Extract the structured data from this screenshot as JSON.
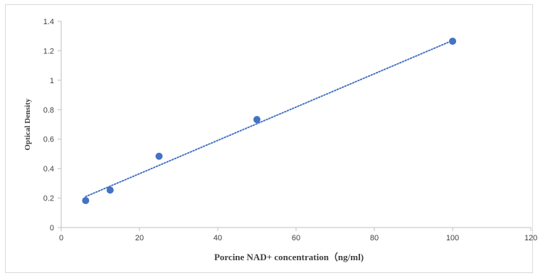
{
  "chart_data": {
    "type": "scatter",
    "xlabel": "Porcine NAD+ concentration（ng/ml)",
    "ylabel": "Optical Density",
    "xlim": [
      0,
      120
    ],
    "ylim": [
      0,
      1.4
    ],
    "x_ticks": [
      0,
      20,
      40,
      60,
      80,
      100,
      120
    ],
    "y_ticks": [
      0,
      0.2,
      0.4,
      0.6,
      0.8,
      1,
      1.2,
      1.4
    ],
    "x_tick_labels": [
      "0",
      "20",
      "40",
      "60",
      "80",
      "100",
      "120"
    ],
    "y_tick_labels": [
      "0",
      "0.2",
      "0.4",
      "0.6",
      "0.8",
      "1",
      "1.2",
      "1.4"
    ],
    "grid": false,
    "series": [
      {
        "x": [
          6.25,
          12.5,
          25,
          50,
          100
        ],
        "y": [
          0.183,
          0.254,
          0.484,
          0.733,
          1.265
        ],
        "marker_color": "#4472c4"
      }
    ],
    "trendline": {
      "type": "linear",
      "style": "dotted",
      "color": "#4472c4",
      "x_start": 6.25,
      "x_end": 100,
      "y_start": 0.21,
      "y_end": 1.27
    },
    "axis_color": "#bfbfbf",
    "frame_color": "#d9d9d9",
    "text_color": "#404040"
  }
}
